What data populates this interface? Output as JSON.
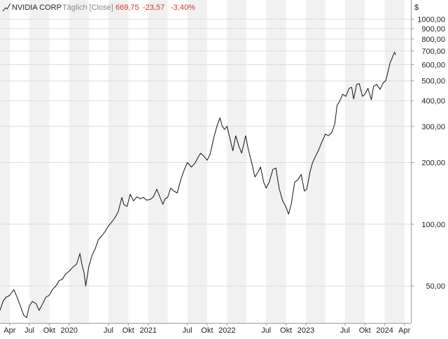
{
  "header": {
    "name": "NVIDIA CORP",
    "interval": "Täglich [Close]",
    "last": "669,75",
    "change": "-23,57",
    "change_pct": "-3,40%"
  },
  "chart_data": {
    "type": "line",
    "title": "NVIDIA CORP",
    "currency_label": "$",
    "y_scale": "log",
    "ylim": [
      33,
      1240
    ],
    "xlim": [
      "2019-02-15",
      "2024-05-01"
    ],
    "yticks": [
      50,
      100,
      200,
      300,
      400,
      500,
      600,
      700,
      800,
      900,
      1000
    ],
    "ytick_labels": [
      "50,00",
      "100,00",
      "200,00",
      "300,00",
      "400,00",
      "500,00",
      "600,00",
      "700,00",
      "800,00",
      "900,00",
      "1000,00"
    ],
    "xticks": [
      {
        "date": "2019-04-01",
        "label": "Apr"
      },
      {
        "date": "2019-07-01",
        "label": "Jul"
      },
      {
        "date": "2019-10-01",
        "label": "Okt"
      },
      {
        "date": "2020-01-01",
        "label": "2020"
      },
      {
        "date": "2020-07-01",
        "label": "Jul"
      },
      {
        "date": "2020-10-01",
        "label": "Okt"
      },
      {
        "date": "2021-01-01",
        "label": "2021"
      },
      {
        "date": "2021-07-01",
        "label": "Jul"
      },
      {
        "date": "2021-10-01",
        "label": "Okt"
      },
      {
        "date": "2022-01-01",
        "label": "2022"
      },
      {
        "date": "2022-07-01",
        "label": "Jul"
      },
      {
        "date": "2022-10-01",
        "label": "Okt"
      },
      {
        "date": "2023-01-01",
        "label": "2023"
      },
      {
        "date": "2023-07-01",
        "label": "Jul"
      },
      {
        "date": "2023-10-01",
        "label": "Okt"
      },
      {
        "date": "2024-01-01",
        "label": "2024"
      },
      {
        "date": "2024-04-01",
        "label": "Apr"
      }
    ],
    "series": [
      {
        "values": [
          [
            "2019-02-15",
            38
          ],
          [
            "2019-03-01",
            42
          ],
          [
            "2019-03-15",
            44
          ],
          [
            "2019-04-01",
            45
          ],
          [
            "2019-04-20",
            48
          ],
          [
            "2019-05-05",
            44
          ],
          [
            "2019-05-20",
            40
          ],
          [
            "2019-06-05",
            36
          ],
          [
            "2019-06-18",
            35
          ],
          [
            "2019-07-01",
            40
          ],
          [
            "2019-07-15",
            42
          ],
          [
            "2019-08-01",
            41
          ],
          [
            "2019-08-15",
            38
          ],
          [
            "2019-09-01",
            41
          ],
          [
            "2019-09-15",
            44
          ],
          [
            "2019-10-01",
            45
          ],
          [
            "2019-10-15",
            48
          ],
          [
            "2019-11-01",
            50
          ],
          [
            "2019-11-15",
            53
          ],
          [
            "2019-12-01",
            54
          ],
          [
            "2019-12-15",
            57
          ],
          [
            "2020-01-01",
            59
          ],
          [
            "2020-01-20",
            62
          ],
          [
            "2020-02-05",
            64
          ],
          [
            "2020-02-20",
            72
          ],
          [
            "2020-03-01",
            63
          ],
          [
            "2020-03-10",
            58
          ],
          [
            "2020-03-18",
            50
          ],
          [
            "2020-04-01",
            62
          ],
          [
            "2020-04-15",
            70
          ],
          [
            "2020-05-01",
            76
          ],
          [
            "2020-05-15",
            84
          ],
          [
            "2020-06-01",
            88
          ],
          [
            "2020-06-15",
            92
          ],
          [
            "2020-07-01",
            98
          ],
          [
            "2020-07-15",
            102
          ],
          [
            "2020-08-01",
            108
          ],
          [
            "2020-08-15",
            115
          ],
          [
            "2020-09-01",
            135
          ],
          [
            "2020-09-10",
            125
          ],
          [
            "2020-09-25",
            122
          ],
          [
            "2020-10-10",
            140
          ],
          [
            "2020-10-25",
            130
          ],
          [
            "2020-11-10",
            136
          ],
          [
            "2020-11-25",
            133
          ],
          [
            "2020-12-10",
            135
          ],
          [
            "2020-12-25",
            131
          ],
          [
            "2021-01-10",
            132
          ],
          [
            "2021-01-25",
            136
          ],
          [
            "2021-02-10",
            148
          ],
          [
            "2021-02-25",
            135
          ],
          [
            "2021-03-10",
            125
          ],
          [
            "2021-03-20",
            133
          ],
          [
            "2021-04-01",
            135
          ],
          [
            "2021-04-15",
            150
          ],
          [
            "2021-05-01",
            145
          ],
          [
            "2021-05-15",
            142
          ],
          [
            "2021-06-01",
            165
          ],
          [
            "2021-06-15",
            182
          ],
          [
            "2021-07-01",
            200
          ],
          [
            "2021-07-20",
            190
          ],
          [
            "2021-08-05",
            198
          ],
          [
            "2021-08-20",
            212
          ],
          [
            "2021-09-01",
            222
          ],
          [
            "2021-09-15",
            215
          ],
          [
            "2021-10-01",
            205
          ],
          [
            "2021-10-15",
            220
          ],
          [
            "2021-11-01",
            265
          ],
          [
            "2021-11-15",
            300
          ],
          [
            "2021-11-29",
            330
          ],
          [
            "2021-12-10",
            300
          ],
          [
            "2021-12-20",
            290
          ],
          [
            "2022-01-01",
            300
          ],
          [
            "2022-01-15",
            260
          ],
          [
            "2022-01-28",
            228
          ],
          [
            "2022-02-10",
            270
          ],
          [
            "2022-02-25",
            240
          ],
          [
            "2022-03-10",
            222
          ],
          [
            "2022-03-28",
            270
          ],
          [
            "2022-04-10",
            230
          ],
          [
            "2022-04-25",
            200
          ],
          [
            "2022-05-10",
            170
          ],
          [
            "2022-05-25",
            180
          ],
          [
            "2022-06-05",
            190
          ],
          [
            "2022-06-20",
            160
          ],
          [
            "2022-07-01",
            150
          ],
          [
            "2022-07-15",
            160
          ],
          [
            "2022-08-01",
            185
          ],
          [
            "2022-08-15",
            188
          ],
          [
            "2022-08-30",
            150
          ],
          [
            "2022-09-15",
            130
          ],
          [
            "2022-09-30",
            122
          ],
          [
            "2022-10-13",
            112
          ],
          [
            "2022-10-25",
            125
          ],
          [
            "2022-11-10",
            160
          ],
          [
            "2022-11-25",
            165
          ],
          [
            "2022-12-10",
            175
          ],
          [
            "2022-12-25",
            145
          ],
          [
            "2023-01-05",
            148
          ],
          [
            "2023-01-20",
            180
          ],
          [
            "2023-02-01",
            200
          ],
          [
            "2023-02-15",
            215
          ],
          [
            "2023-03-01",
            230
          ],
          [
            "2023-03-15",
            250
          ],
          [
            "2023-04-01",
            275
          ],
          [
            "2023-04-15",
            270
          ],
          [
            "2023-05-01",
            280
          ],
          [
            "2023-05-15",
            310
          ],
          [
            "2023-05-25",
            380
          ],
          [
            "2023-06-05",
            395
          ],
          [
            "2023-06-20",
            430
          ],
          [
            "2023-07-05",
            420
          ],
          [
            "2023-07-20",
            460
          ],
          [
            "2023-08-01",
            465
          ],
          [
            "2023-08-10",
            408
          ],
          [
            "2023-08-24",
            480
          ],
          [
            "2023-09-05",
            485
          ],
          [
            "2023-09-20",
            420
          ],
          [
            "2023-10-01",
            430
          ],
          [
            "2023-10-15",
            460
          ],
          [
            "2023-10-31",
            405
          ],
          [
            "2023-11-10",
            470
          ],
          [
            "2023-11-25",
            480
          ],
          [
            "2023-12-10",
            455
          ],
          [
            "2023-12-25",
            490
          ],
          [
            "2024-01-05",
            500
          ],
          [
            "2024-01-15",
            550
          ],
          [
            "2024-01-25",
            610
          ],
          [
            "2024-02-05",
            650
          ],
          [
            "2024-02-15",
            690
          ],
          [
            "2024-02-21",
            670
          ]
        ]
      }
    ]
  }
}
